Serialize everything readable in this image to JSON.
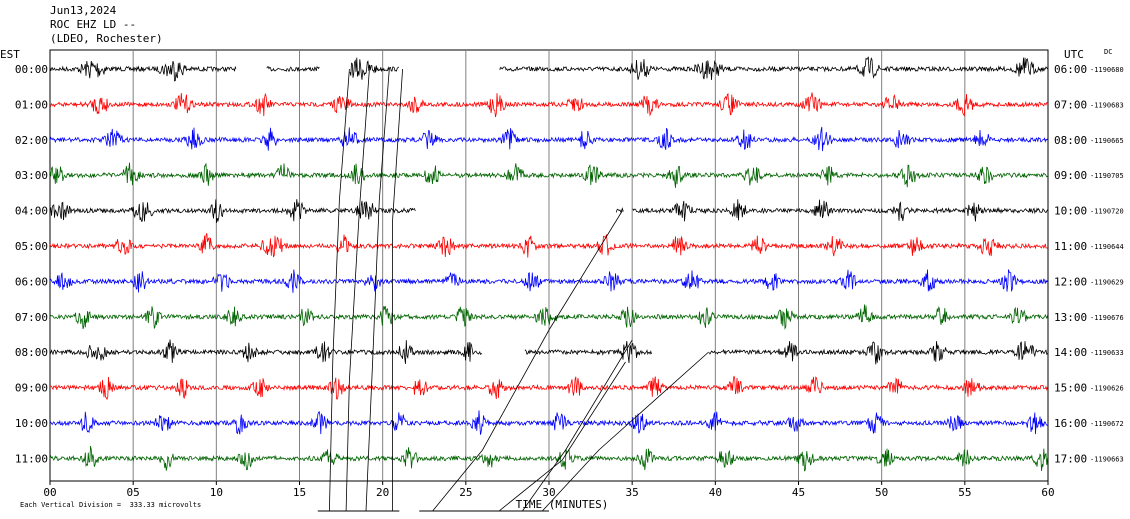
{
  "header": {
    "date": "Jun13,2024",
    "station": "ROC EHZ LD --",
    "network": "(LDEO, Rochester)"
  },
  "left_axis_label": "EST",
  "right_axis_label": "UTC",
  "right_axis_sublabel": "DC",
  "footer_note": "Each Vertical Division =  333.33 microvolts",
  "colors": {
    "black": "#000000",
    "red": "#ff0000",
    "blue": "#0000ff",
    "green": "#006400",
    "grid": "#808080"
  },
  "chart_data": {
    "type": "line",
    "title": "",
    "xlabel": "TIME (MINUTES)",
    "ylabel": "",
    "xlim": [
      0,
      60
    ],
    "x_ticks": [
      "00",
      "05",
      "10",
      "15",
      "20",
      "25",
      "30",
      "35",
      "40",
      "45",
      "50",
      "55",
      "60"
    ],
    "grid": true,
    "traces": [
      {
        "est": "00:00",
        "utc": "06:00",
        "dc": "-1190680",
        "color": "black",
        "gaps": [
          [
            11.2,
            13.0
          ],
          [
            16.2,
            18.0
          ],
          [
            21.0,
            27.0
          ]
        ],
        "bursts": [
          [
            2.6,
            1.0
          ],
          [
            7.4,
            1.0
          ],
          [
            18.6,
            1.2
          ],
          [
            35.5,
            0.8
          ],
          [
            39.6,
            1.0
          ],
          [
            49.2,
            0.8
          ],
          [
            58.6,
            0.8
          ]
        ]
      },
      {
        "est": "01:00",
        "utc": "07:00",
        "dc": "-1190683",
        "color": "red",
        "gaps": [],
        "bursts": [
          [
            3.0,
            0.7
          ],
          [
            8.0,
            0.7
          ],
          [
            12.8,
            0.6
          ],
          [
            17.5,
            0.7
          ],
          [
            22.0,
            0.6
          ],
          [
            26.8,
            0.7
          ],
          [
            31.6,
            0.6
          ],
          [
            36.0,
            0.7
          ],
          [
            40.8,
            0.7
          ],
          [
            45.8,
            0.7
          ],
          [
            50.6,
            0.6
          ],
          [
            55.0,
            0.7
          ]
        ]
      },
      {
        "est": "02:00",
        "utc": "08:00",
        "dc": "-1190665",
        "color": "blue",
        "gaps": [],
        "bursts": [
          [
            3.8,
            0.7
          ],
          [
            8.6,
            0.7
          ],
          [
            13.2,
            0.6
          ],
          [
            18.0,
            0.7
          ],
          [
            22.8,
            0.6
          ],
          [
            27.6,
            0.6
          ],
          [
            32.2,
            0.6
          ],
          [
            37.0,
            0.6
          ],
          [
            41.8,
            0.6
          ],
          [
            46.4,
            0.7
          ],
          [
            51.2,
            0.7
          ],
          [
            56.0,
            0.6
          ]
        ]
      },
      {
        "est": "03:00",
        "utc": "09:00",
        "dc": "-1190705",
        "color": "green",
        "gaps": [],
        "bursts": [
          [
            0.4,
            0.6
          ],
          [
            4.8,
            0.7
          ],
          [
            9.4,
            0.6
          ],
          [
            14.0,
            0.6
          ],
          [
            18.4,
            0.7
          ],
          [
            23.0,
            0.6
          ],
          [
            28.0,
            0.7
          ],
          [
            32.6,
            0.6
          ],
          [
            37.6,
            0.6
          ],
          [
            42.2,
            0.7
          ],
          [
            46.8,
            0.6
          ],
          [
            51.6,
            0.7
          ],
          [
            56.2,
            0.6
          ]
        ]
      },
      {
        "est": "04:00",
        "utc": "10:00",
        "dc": "-1190720",
        "color": "black",
        "gaps": [
          [
            22.0,
            34.0
          ],
          [
            34.5,
            35.0
          ]
        ],
        "bursts": [
          [
            0.6,
            0.8
          ],
          [
            5.6,
            0.8
          ],
          [
            10.0,
            0.6
          ],
          [
            14.8,
            0.7
          ],
          [
            19.0,
            0.8
          ],
          [
            38.0,
            0.7
          ],
          [
            41.4,
            0.6
          ],
          [
            46.4,
            0.7
          ],
          [
            51.2,
            0.6
          ],
          [
            55.6,
            0.6
          ]
        ]
      },
      {
        "est": "05:00",
        "utc": "11:00",
        "dc": "-1190644",
        "color": "red",
        "gaps": [],
        "bursts": [
          [
            4.4,
            0.6
          ],
          [
            9.4,
            0.6
          ],
          [
            13.4,
            1.0
          ],
          [
            17.6,
            0.5
          ],
          [
            23.8,
            0.7
          ],
          [
            28.8,
            0.6
          ],
          [
            33.4,
            0.6
          ],
          [
            37.8,
            0.6
          ],
          [
            42.6,
            0.6
          ],
          [
            47.2,
            0.6
          ],
          [
            52.0,
            0.6
          ],
          [
            56.4,
            0.7
          ]
        ]
      },
      {
        "est": "06:00",
        "utc": "12:00",
        "dc": "-1190629",
        "color": "blue",
        "gaps": [],
        "bursts": [
          [
            0.8,
            0.6
          ],
          [
            5.4,
            0.6
          ],
          [
            10.4,
            0.7
          ],
          [
            14.6,
            0.6
          ],
          [
            19.4,
            0.6
          ],
          [
            24.2,
            0.6
          ],
          [
            29.0,
            0.6
          ],
          [
            33.8,
            0.6
          ],
          [
            38.6,
            0.7
          ],
          [
            43.4,
            0.6
          ],
          [
            48.0,
            0.6
          ],
          [
            52.8,
            0.6
          ],
          [
            57.6,
            0.6
          ]
        ]
      },
      {
        "est": "07:00",
        "utc": "13:00",
        "dc": "-1190676",
        "color": "green",
        "gaps": [],
        "bursts": [
          [
            2.0,
            0.6
          ],
          [
            6.2,
            0.6
          ],
          [
            11.0,
            0.6
          ],
          [
            15.4,
            0.6
          ],
          [
            20.2,
            0.6
          ],
          [
            24.8,
            0.6
          ],
          [
            29.8,
            0.8
          ],
          [
            34.8,
            0.6
          ],
          [
            39.4,
            0.6
          ],
          [
            44.2,
            0.6
          ],
          [
            49.0,
            0.6
          ],
          [
            53.6,
            0.6
          ],
          [
            58.2,
            0.6
          ]
        ]
      },
      {
        "est": "08:00",
        "utc": "14:00",
        "dc": "-1190633",
        "color": "black",
        "gaps": [
          [
            26.0,
            28.5
          ],
          [
            36.2,
            39.6
          ]
        ],
        "bursts": [
          [
            2.8,
            0.8
          ],
          [
            7.2,
            0.7
          ],
          [
            12.0,
            0.6
          ],
          [
            16.4,
            0.7
          ],
          [
            21.4,
            0.6
          ],
          [
            25.2,
            0.5
          ],
          [
            34.8,
            0.7
          ],
          [
            44.4,
            0.7
          ],
          [
            49.6,
            0.6
          ],
          [
            53.4,
            0.6
          ],
          [
            58.6,
            0.8
          ]
        ]
      },
      {
        "est": "09:00",
        "utc": "15:00",
        "dc": "-1190626",
        "color": "red",
        "gaps": [],
        "bursts": [
          [
            3.4,
            0.6
          ],
          [
            8.0,
            0.6
          ],
          [
            12.6,
            0.6
          ],
          [
            17.2,
            0.6
          ],
          [
            22.2,
            0.6
          ],
          [
            26.8,
            0.6
          ],
          [
            31.6,
            0.6
          ],
          [
            36.4,
            0.6
          ],
          [
            41.2,
            0.6
          ],
          [
            46.0,
            0.6
          ],
          [
            50.8,
            0.6
          ],
          [
            55.4,
            0.6
          ]
        ]
      },
      {
        "est": "10:00",
        "utc": "16:00",
        "dc": "-1190672",
        "color": "blue",
        "gaps": [],
        "bursts": [
          [
            2.2,
            0.6
          ],
          [
            6.8,
            0.6
          ],
          [
            11.4,
            0.6
          ],
          [
            16.2,
            0.6
          ],
          [
            21.0,
            0.6
          ],
          [
            25.8,
            0.6
          ],
          [
            30.6,
            0.6
          ],
          [
            35.4,
            0.6
          ],
          [
            40.0,
            0.6
          ],
          [
            44.8,
            0.6
          ],
          [
            49.6,
            0.6
          ],
          [
            54.4,
            0.6
          ],
          [
            59.2,
            0.6
          ]
        ]
      },
      {
        "est": "11:00",
        "utc": "17:00",
        "dc": "-1190663",
        "color": "green",
        "gaps": [],
        "bursts": [
          [
            2.4,
            0.6
          ],
          [
            7.0,
            0.6
          ],
          [
            11.8,
            0.6
          ],
          [
            16.8,
            0.6
          ],
          [
            21.6,
            0.6
          ],
          [
            26.4,
            0.6
          ],
          [
            31.0,
            0.6
          ],
          [
            35.8,
            0.6
          ],
          [
            40.6,
            0.6
          ],
          [
            45.4,
            0.6
          ],
          [
            50.2,
            0.6
          ],
          [
            55.0,
            0.6
          ],
          [
            59.6,
            0.6
          ]
        ]
      }
    ]
  }
}
